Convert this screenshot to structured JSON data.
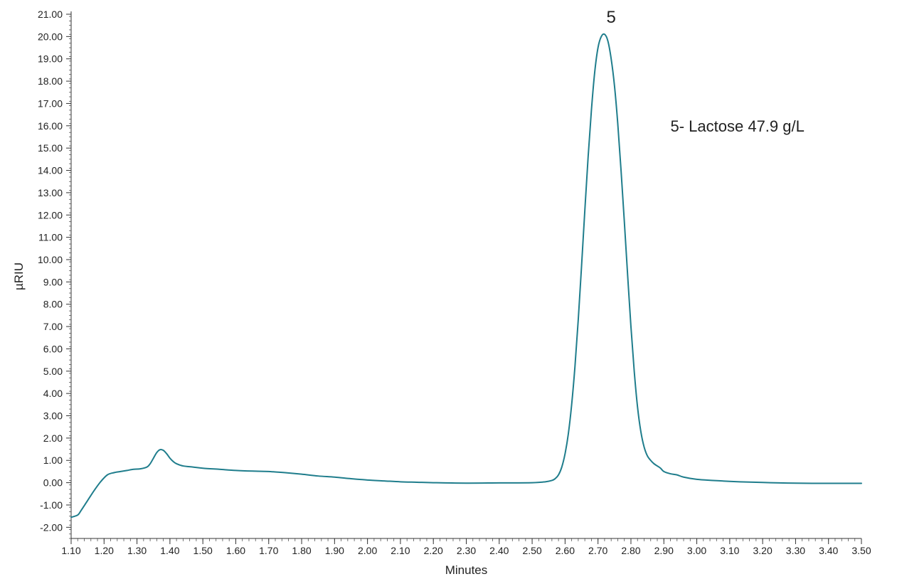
{
  "chart_data": {
    "type": "line",
    "xlabel": "Minutes",
    "ylabel": "µRIU",
    "xlim": [
      1.1,
      3.5
    ],
    "ylim": [
      -2.5,
      21.0
    ],
    "x_major_step": 0.1,
    "x_minor_step": 0.02,
    "y_major_step": 1.0,
    "y_minor_step": 0.2,
    "x_ticks": [
      "1.10",
      "1.20",
      "1.30",
      "1.40",
      "1.50",
      "1.60",
      "1.70",
      "1.80",
      "1.90",
      "2.00",
      "2.10",
      "2.20",
      "2.30",
      "2.40",
      "2.50",
      "2.60",
      "2.70",
      "2.80",
      "2.90",
      "3.00",
      "3.10",
      "3.20",
      "3.30",
      "3.40",
      "3.50"
    ],
    "y_ticks": [
      "21.00",
      "20.00",
      "19.00",
      "18.00",
      "17.00",
      "16.00",
      "15.00",
      "14.00",
      "13.00",
      "12.00",
      "11.00",
      "10.00",
      "9.00",
      "8.00",
      "7.00",
      "6.00",
      "5.00",
      "4.00",
      "3.00",
      "2.00",
      "1.00",
      "0.00",
      "-1.00",
      "-2.00"
    ],
    "grid": false,
    "series": [
      {
        "color": "#1f7d8c",
        "x": [
          1.1,
          1.12,
          1.13,
          1.15,
          1.17,
          1.19,
          1.21,
          1.23,
          1.25,
          1.27,
          1.29,
          1.31,
          1.33,
          1.34,
          1.35,
          1.36,
          1.37,
          1.38,
          1.39,
          1.4,
          1.41,
          1.42,
          1.44,
          1.47,
          1.5,
          1.55,
          1.6,
          1.65,
          1.7,
          1.72,
          1.75,
          1.8,
          1.85,
          1.9,
          1.95,
          2.0,
          2.05,
          2.1,
          2.15,
          2.2,
          2.3,
          2.4,
          2.5,
          2.54,
          2.56,
          2.57,
          2.58,
          2.59,
          2.6,
          2.61,
          2.62,
          2.63,
          2.64,
          2.65,
          2.66,
          2.67,
          2.68,
          2.69,
          2.7,
          2.71,
          2.72,
          2.73,
          2.74,
          2.75,
          2.76,
          2.77,
          2.78,
          2.79,
          2.8,
          2.81,
          2.82,
          2.83,
          2.84,
          2.85,
          2.86,
          2.87,
          2.88,
          2.89,
          2.9,
          2.92,
          2.94,
          2.96,
          3.0,
          3.05,
          3.1,
          3.15,
          3.2,
          3.25,
          3.3,
          3.35,
          3.4,
          3.45,
          3.5
        ],
        "y": [
          -1.55,
          -1.45,
          -1.25,
          -0.8,
          -0.35,
          0.05,
          0.35,
          0.45,
          0.5,
          0.55,
          0.6,
          0.62,
          0.7,
          0.85,
          1.1,
          1.35,
          1.48,
          1.45,
          1.3,
          1.1,
          0.95,
          0.85,
          0.75,
          0.7,
          0.65,
          0.6,
          0.55,
          0.52,
          0.5,
          0.48,
          0.45,
          0.38,
          0.3,
          0.25,
          0.18,
          0.12,
          0.08,
          0.04,
          0.02,
          0.0,
          -0.02,
          -0.01,
          0.0,
          0.04,
          0.1,
          0.18,
          0.35,
          0.7,
          1.3,
          2.2,
          3.5,
          5.2,
          7.3,
          9.7,
          12.2,
          14.6,
          16.7,
          18.4,
          19.5,
          20.0,
          20.1,
          19.8,
          19.0,
          17.8,
          16.1,
          14.0,
          11.7,
          9.3,
          7.0,
          5.0,
          3.4,
          2.3,
          1.6,
          1.2,
          1.0,
          0.85,
          0.75,
          0.65,
          0.5,
          0.4,
          0.35,
          0.25,
          0.15,
          0.1,
          0.06,
          0.03,
          0.01,
          -0.01,
          -0.02,
          -0.03,
          -0.03,
          -0.03,
          -0.03
        ]
      }
    ],
    "peak_label": {
      "text": "5",
      "x": 2.74,
      "y": 20.1
    },
    "annotation": {
      "text": "5- Lactose 47.9 g/L",
      "x": 2.92,
      "y": 16.0
    }
  }
}
